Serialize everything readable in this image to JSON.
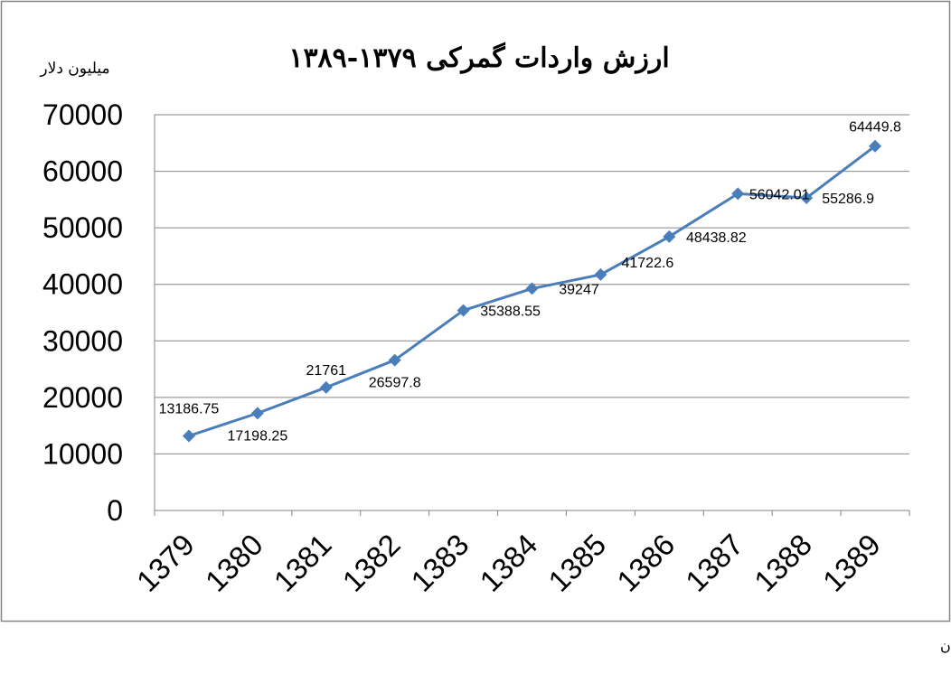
{
  "chart_data": {
    "type": "line",
    "title": "ارزش واردات گمرکی ۱۳۷۹-۱۳۸۹",
    "ylabel": "میلیون دلار",
    "xlabel": "",
    "categories": [
      "1379",
      "1380",
      "1381",
      "1382",
      "1383",
      "1384",
      "1385",
      "1386",
      "1387",
      "1388",
      "1389"
    ],
    "values": [
      13186.75,
      17198.25,
      21761,
      26597.8,
      35388.55,
      39247,
      41722.6,
      48438.82,
      56042.01,
      55286.9,
      64449.8
    ],
    "data_labels": [
      "13186.75",
      "17198.25",
      "21761",
      "26597.8",
      "35388.55",
      "39247",
      "41722.6",
      "48438.82",
      "56042.01",
      "55286.9",
      "64449.8"
    ],
    "ylim": [
      0,
      70000
    ],
    "yticks": [
      "0",
      "10000",
      "20000",
      "30000",
      "40000",
      "50000",
      "60000",
      "70000"
    ],
    "grid": true,
    "legend": "none",
    "line_color": "#4a7ebb",
    "marker_color": "#4a7ebb",
    "grid_color": "#868686"
  },
  "source_note": "مأخذ: بانک مرکزی و گمرک ج.ا.ایران"
}
